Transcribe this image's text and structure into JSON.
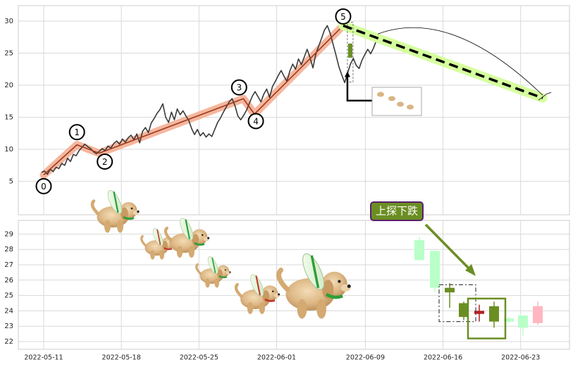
{
  "chart_data": [
    {
      "type": "line",
      "title": "",
      "xlabel": "",
      "ylabel": "",
      "ylim": [
        0,
        32
      ],
      "yticks": [
        "5",
        "10",
        "15",
        "20",
        "25",
        "30"
      ],
      "grid": true,
      "colors": {
        "price": "#3a3a3a",
        "wave": "#e8714a",
        "wave_band": "#f4a98c",
        "trend": "#000000",
        "trend_band": "#d5ff9e",
        "frame": "#cccccc"
      },
      "price_series": [
        6.4,
        6.6,
        6.1,
        6.9,
        6.5,
        7.2,
        7.0,
        7.8,
        7.5,
        8.6,
        8.1,
        9.2,
        9.0,
        9.8,
        10.3,
        10.8,
        10.4,
        10.1,
        9.6,
        9.3,
        9.7,
        10.1,
        9.8,
        10.5,
        10.2,
        10.9,
        11.3,
        10.8,
        11.6,
        11.1,
        11.8,
        12.2,
        11.5,
        12.4,
        11.0,
        12.8,
        13.4,
        12.6,
        14.1,
        14.8,
        15.6,
        16.2,
        17.1,
        15.0,
        14.2,
        15.8,
        14.6,
        16.3,
        15.4,
        16.0,
        15.2,
        14.5,
        13.2,
        12.3,
        13.1,
        12.1,
        12.6,
        11.9,
        12.4,
        12.0,
        13.1,
        14.2,
        14.9,
        15.8,
        16.6,
        17.4,
        17.9,
        16.8,
        15.2,
        14.6,
        15.3,
        16.1,
        17.2,
        18.3,
        19.0,
        18.2,
        17.4,
        18.6,
        19.4,
        18.1,
        19.8,
        20.6,
        21.5,
        22.3,
        21.4,
        20.6,
        22.2,
        23.3,
        22.5,
        24.1,
        23.2,
        24.4,
        25.6,
        24.3,
        22.7,
        24.8,
        26.1,
        27.3,
        28.6,
        29.3,
        28.1,
        26.4,
        24.7,
        22.9,
        21.6,
        20.4,
        21.8,
        23.3,
        24.2,
        23.1,
        22.6,
        23.9,
        24.8,
        25.6,
        24.9,
        25.8,
        27.0,
        28.1
      ],
      "elliott_points": [
        {
          "label": "0",
          "x": "2022-05-11",
          "y": 6.0
        },
        {
          "label": "1",
          "x": "2022-05-14",
          "y": 10.7
        },
        {
          "label": "2",
          "x": "2022-05-16",
          "y": 9.4
        },
        {
          "label": "3",
          "x": "2022-05-29",
          "y": 17.9
        },
        {
          "label": "4",
          "x": "2022-05-30",
          "y": 15.5
        },
        {
          "label": "5",
          "x": "2022-06-07",
          "y": 29.3
        }
      ],
      "forecast_line": {
        "from_y": 29.3,
        "to_y": 18.0
      }
    },
    {
      "type": "candlestick",
      "ylim": [
        21.5,
        29.8
      ],
      "yticks": [
        "22",
        "23",
        "24",
        "25",
        "26",
        "27",
        "28",
        "29"
      ],
      "xticks": [
        "2022-05-11",
        "2022-05-18",
        "2022-05-25",
        "2022-06-01",
        "2022-06-09",
        "2022-06-16",
        "2022-06-23"
      ],
      "annotation": "上探下跌",
      "candles": [
        {
          "open": 27.3,
          "close": 28.6,
          "high": 28.8,
          "low": 27.3,
          "color": "#b8ffc8"
        },
        {
          "open": 25.5,
          "close": 27.9,
          "high": 27.9,
          "low": 25.2,
          "color": "#b8ffc8"
        },
        {
          "open": 25.2,
          "close": 25.5,
          "high": 25.8,
          "low": 24.2,
          "color": "#6b8e23"
        },
        {
          "open": 24.5,
          "close": 23.6,
          "high": 24.6,
          "low": 23.4,
          "color": "#6b8e23"
        },
        {
          "open": 24.0,
          "close": 23.8,
          "high": 24.4,
          "low": 23.3,
          "color": "#b22222"
        },
        {
          "open": 24.3,
          "close": 23.3,
          "high": 24.6,
          "low": 22.9,
          "color": "#6b8e23"
        },
        {
          "open": 23.5,
          "close": 23.3,
          "high": 23.6,
          "low": 23.2,
          "color": "#b8ffc8"
        },
        {
          "open": 22.9,
          "close": 23.7,
          "high": 23.7,
          "low": 22.4,
          "color": "#b8ffc8"
        },
        {
          "open": 23.2,
          "close": 24.3,
          "high": 24.6,
          "low": 23.1,
          "color": "#ffb6c1"
        }
      ]
    }
  ]
}
